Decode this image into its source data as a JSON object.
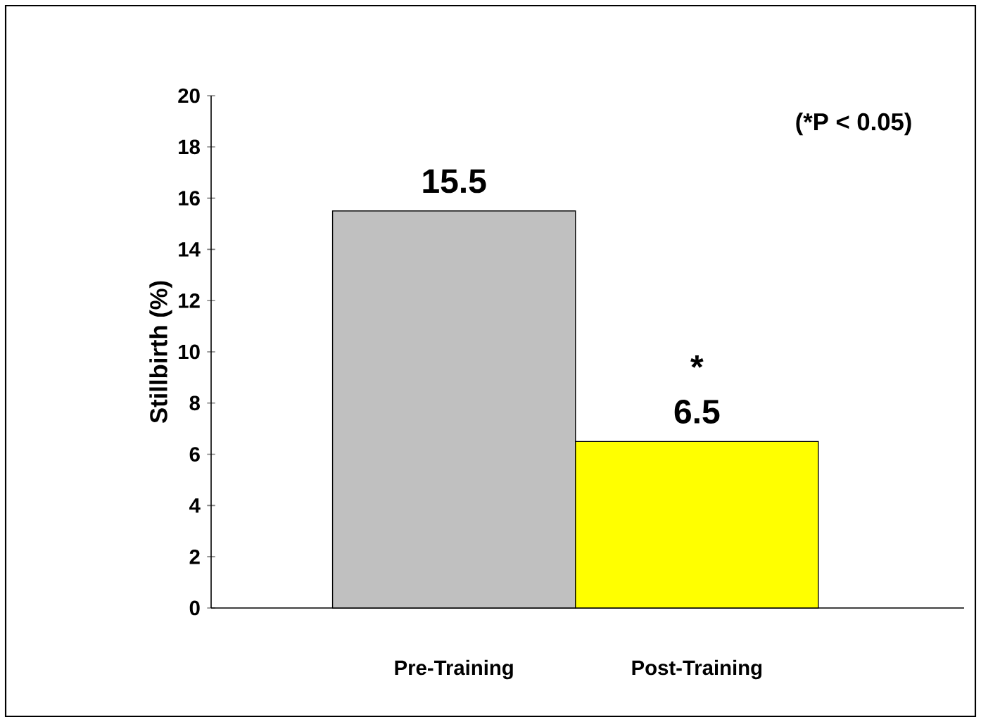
{
  "chart_data": {
    "type": "bar",
    "ylabel": "Stillbirth (%)",
    "categories": [
      "Pre-Training",
      "Post-Training"
    ],
    "values": [
      15.5,
      6.5
    ],
    "colors": [
      "#c0c0c0",
      "#ffff00"
    ],
    "ylim": [
      0,
      20
    ],
    "yticks": [
      0,
      2,
      4,
      6,
      8,
      10,
      12,
      14,
      16,
      18,
      20
    ],
    "data_labels": true,
    "grid": false,
    "annotations": [
      "(*P < 0.05)",
      "*"
    ]
  }
}
